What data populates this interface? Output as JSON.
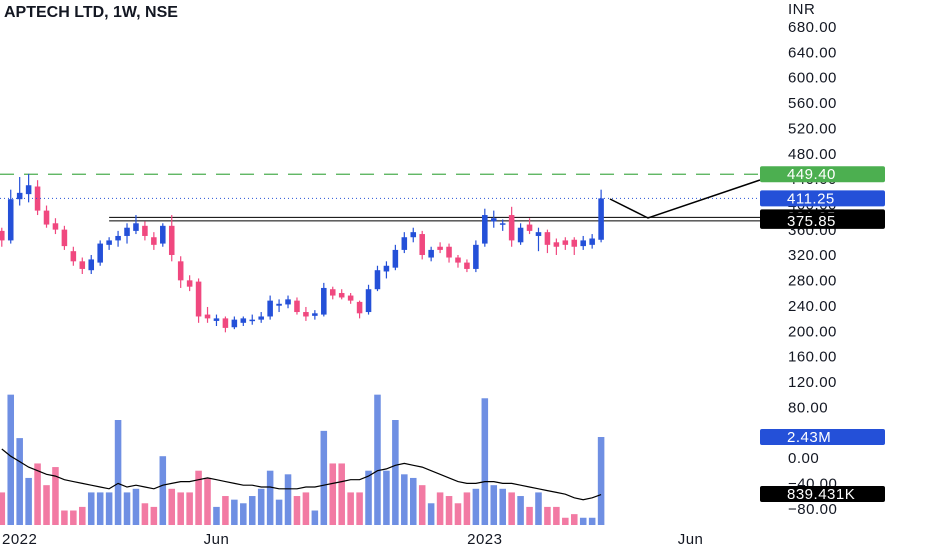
{
  "chart_data": {
    "type": "candlestick",
    "title": "APTECH LTD, 1W, NSE",
    "currency": "INR",
    "up_color": "#2450d8",
    "down_color": "#f0487f",
    "volume_up_color": "#6f8fe3",
    "volume_down_color": "#f27aa3",
    "ylim": [
      -111.8,
      724.2
    ],
    "yticks": [
      {
        "value": 680,
        "label": "680.00"
      },
      {
        "value": 640,
        "label": "640.00"
      },
      {
        "value": 600,
        "label": "600.00"
      },
      {
        "value": 560,
        "label": "560.00"
      },
      {
        "value": 520,
        "label": "520.00"
      },
      {
        "value": 480,
        "label": "480.00"
      },
      {
        "value": 440,
        "label": "440.00"
      },
      {
        "value": 400,
        "label": "400.00"
      },
      {
        "value": 360,
        "label": "360.00"
      },
      {
        "value": 320,
        "label": "320.00"
      },
      {
        "value": 280,
        "label": "280.00"
      },
      {
        "value": 240,
        "label": "240.00"
      },
      {
        "value": 200,
        "label": "200.00"
      },
      {
        "value": 160,
        "label": "160.00"
      },
      {
        "value": 120,
        "label": "120.00"
      },
      {
        "value": 80,
        "label": "80.00"
      },
      {
        "value": 0,
        "label": "0.00"
      },
      {
        "value": -40,
        "label": "−40.00"
      },
      {
        "value": -80,
        "label": "−80.00"
      }
    ],
    "xlim": [
      -0.2,
      87.0
    ],
    "xticks": [
      {
        "value": 2,
        "label": "2022"
      },
      {
        "value": 24,
        "label": "Jun"
      },
      {
        "value": 54,
        "label": "2023"
      },
      {
        "value": 77,
        "label": "Jun"
      }
    ],
    "ohlc": [
      [
        360,
        365,
        335,
        345
      ],
      [
        345,
        425,
        340,
        410
      ],
      [
        410,
        445,
        400,
        420
      ],
      [
        418,
        450,
        405,
        432
      ],
      [
        430,
        440,
        385,
        392
      ],
      [
        392,
        400,
        365,
        370
      ],
      [
        372,
        380,
        355,
        362
      ],
      [
        362,
        368,
        330,
        336
      ],
      [
        328,
        335,
        305,
        312
      ],
      [
        312,
        318,
        292,
        300
      ],
      [
        298,
        322,
        292,
        315
      ],
      [
        310,
        345,
        305,
        340
      ],
      [
        338,
        350,
        330,
        345
      ],
      [
        345,
        360,
        335,
        352
      ],
      [
        352,
        372,
        340,
        365
      ],
      [
        360,
        385,
        355,
        372
      ],
      [
        368,
        375,
        345,
        352
      ],
      [
        350,
        358,
        330,
        338
      ],
      [
        340,
        372,
        335,
        368
      ],
      [
        368,
        385,
        312,
        322
      ],
      [
        312,
        320,
        270,
        282
      ],
      [
        282,
        290,
        265,
        272
      ],
      [
        280,
        285,
        215,
        225
      ],
      [
        228,
        240,
        215,
        222
      ],
      [
        218,
        228,
        210,
        222
      ],
      [
        222,
        225,
        200,
        207
      ],
      [
        208,
        225,
        205,
        220
      ],
      [
        215,
        225,
        210,
        222
      ],
      [
        218,
        228,
        212,
        220
      ],
      [
        220,
        232,
        215,
        225
      ],
      [
        225,
        258,
        220,
        250
      ],
      [
        242,
        252,
        232,
        245
      ],
      [
        244,
        258,
        238,
        252
      ],
      [
        250,
        255,
        228,
        232
      ],
      [
        232,
        240,
        218,
        225
      ],
      [
        226,
        235,
        220,
        230
      ],
      [
        228,
        278,
        225,
        270
      ],
      [
        268,
        272,
        252,
        258
      ],
      [
        262,
        268,
        252,
        255
      ],
      [
        258,
        262,
        245,
        250
      ],
      [
        248,
        250,
        222,
        230
      ],
      [
        232,
        275,
        228,
        268
      ],
      [
        268,
        305,
        265,
        298
      ],
      [
        296,
        312,
        285,
        305
      ],
      [
        302,
        338,
        298,
        330
      ],
      [
        330,
        358,
        325,
        350
      ],
      [
        350,
        365,
        342,
        358
      ],
      [
        355,
        360,
        315,
        322
      ],
      [
        318,
        335,
        312,
        330
      ],
      [
        335,
        342,
        325,
        330
      ],
      [
        335,
        340,
        310,
        318
      ],
      [
        318,
        322,
        302,
        310
      ],
      [
        310,
        315,
        295,
        300
      ],
      [
        300,
        345,
        295,
        338
      ],
      [
        340,
        395,
        335,
        385
      ],
      [
        375,
        392,
        365,
        380
      ],
      [
        370,
        378,
        360,
        372
      ],
      [
        385,
        398,
        335,
        345
      ],
      [
        342,
        372,
        338,
        365
      ],
      [
        370,
        380,
        355,
        360
      ],
      [
        352,
        365,
        328,
        358
      ],
      [
        358,
        362,
        325,
        338
      ],
      [
        342,
        348,
        322,
        335
      ],
      [
        345,
        350,
        330,
        338
      ],
      [
        346,
        350,
        322,
        335
      ],
      [
        336,
        352,
        330,
        345
      ],
      [
        338,
        355,
        332,
        348
      ],
      [
        346,
        425,
        342,
        411.25
      ]
    ],
    "volume_ylim": [
      0,
      14500000
    ],
    "volume": [
      900000,
      3600000,
      2400000,
      1300000,
      1700000,
      1100000,
      1600000,
      400000,
      400000,
      500000,
      900000,
      900000,
      900000,
      2900000,
      900000,
      1000000,
      600000,
      500000,
      1900000,
      1000000,
      900000,
      900000,
      1500000,
      1300000,
      500000,
      800000,
      700000,
      600000,
      800000,
      1000000,
      1500000,
      700000,
      1400000,
      800000,
      900000,
      400000,
      2600000,
      1700000,
      1700000,
      900000,
      900000,
      1500000,
      3600000,
      1500000,
      2900000,
      1400000,
      1300000,
      1100000,
      600000,
      900000,
      800000,
      600000,
      900000,
      1000000,
      3500000,
      1100000,
      1000000,
      900000,
      800000,
      500000,
      900000,
      500000,
      500000,
      200000,
      300000,
      200000,
      200000,
      2430000
    ],
    "volume_value_labels": {
      "67": "2.43M"
    },
    "volume_ma": [
      2100000,
      1900000,
      1750000,
      1600000,
      1500000,
      1400000,
      1350000,
      1250000,
      1200000,
      1150000,
      1100000,
      1050000,
      1000000,
      1150000,
      1050000,
      1100000,
      1050000,
      1000000,
      1100000,
      1150000,
      1200000,
      1200000,
      1250000,
      1300000,
      1250000,
      1200000,
      1150000,
      1100000,
      1100000,
      1050000,
      1050000,
      1000000,
      1000000,
      1000000,
      1050000,
      1050000,
      1100000,
      1150000,
      1200000,
      1250000,
      1250000,
      1350000,
      1500000,
      1550000,
      1650000,
      1700000,
      1650000,
      1600000,
      1500000,
      1400000,
      1300000,
      1200000,
      1150000,
      1150000,
      1200000,
      1200000,
      1150000,
      1150000,
      1100000,
      1050000,
      1000000,
      950000,
      900000,
      850000,
      750000,
      700000,
      750000,
      839431
    ],
    "volume_ma_color": "#000000",
    "volume_ma_value_labels": {
      "67": "839.431K"
    },
    "levels": [
      {
        "value": 449.4,
        "label": "449.40",
        "color": "#4caf50",
        "style": "dashed"
      },
      {
        "value": 381.25,
        "color": "#000000",
        "style": "solid"
      },
      {
        "value": 375.85,
        "color": "#000000",
        "style": "solid"
      }
    ]
  }
}
